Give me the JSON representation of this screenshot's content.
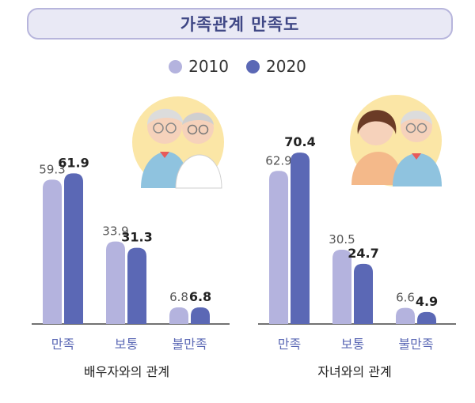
{
  "title": "가족관계 만족도",
  "legend": [
    {
      "label": "2010",
      "color": "#b4b3de"
    },
    {
      "label": "2020",
      "color": "#5b68b5"
    }
  ],
  "chart_data": [
    {
      "type": "bar",
      "group_label": "배우자와의 관계",
      "categories": [
        "만족",
        "보통",
        "불만족"
      ],
      "series": [
        {
          "name": "2010",
          "values": [
            59.3,
            33.9,
            6.8
          ]
        },
        {
          "name": "2020",
          "values": [
            61.9,
            31.3,
            6.8
          ]
        }
      ],
      "value_labels": [
        [
          "59.3",
          "33.9",
          "6.8"
        ],
        [
          "61.9",
          "31.3",
          "6.8"
        ]
      ],
      "illustration": "elderly-couple-icon"
    },
    {
      "type": "bar",
      "group_label": "자녀와의 관계",
      "categories": [
        "만족",
        "보통",
        "불만족"
      ],
      "series": [
        {
          "name": "2010",
          "values": [
            62.9,
            30.5,
            6.6
          ]
        },
        {
          "name": "2020",
          "values": [
            70.4,
            24.7,
            4.9
          ]
        }
      ],
      "value_labels": [
        [
          "62.9",
          "30.5",
          "6.6"
        ],
        [
          "70.4",
          "24.7",
          "4.9"
        ]
      ],
      "illustration": "mother-and-daughter-icon"
    }
  ],
  "colors": {
    "bar_2010": "#b4b3de",
    "bar_2020": "#5b68b5",
    "category_text": "#5b68b5",
    "axis": "#444444",
    "illustration_bg": "#fbe6a6"
  }
}
